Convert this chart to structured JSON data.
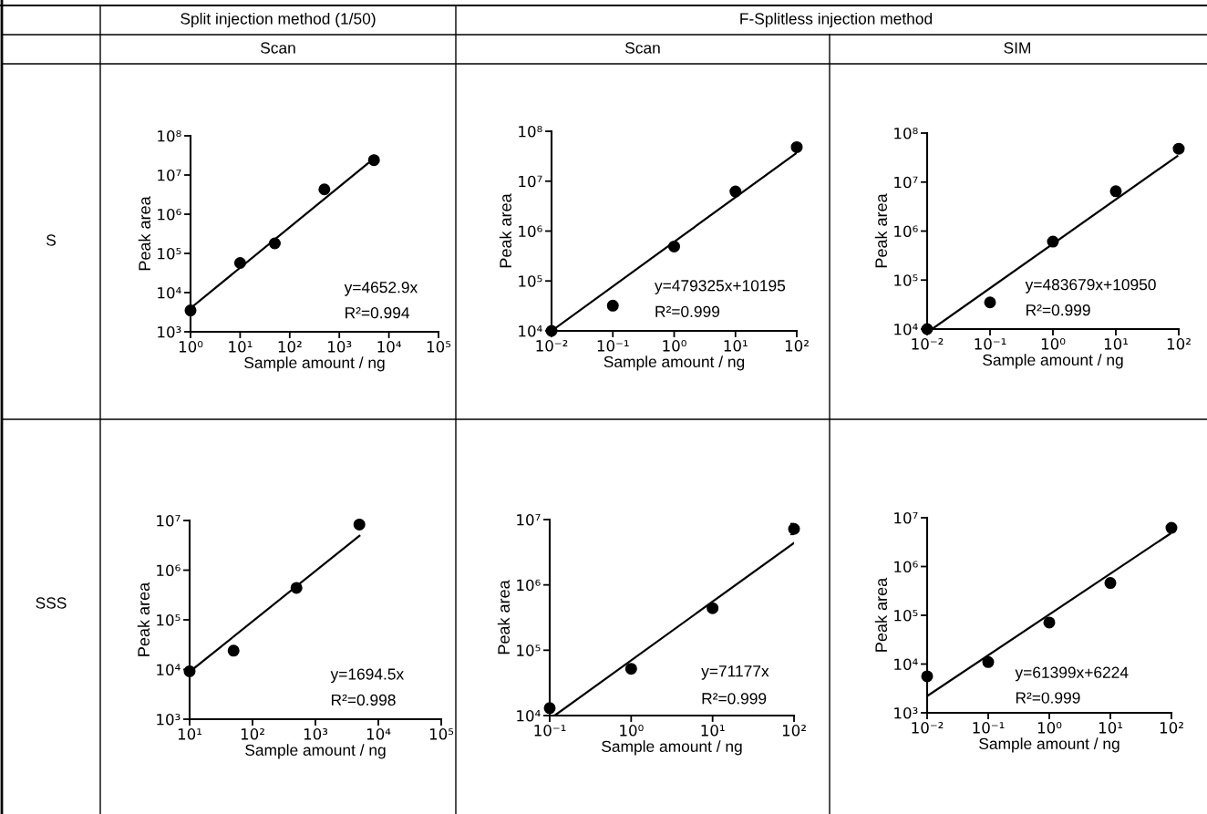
{
  "chart_data": [
    {
      "type": "other",
      "annotations": [
        "Split injection method (1/50)",
        "F-Splitless injection method",
        "Scan",
        "Scan",
        "SIM",
        "S",
        "SSS"
      ]
    },
    {
      "type": "scatter",
      "xlabel": "Sample amount / ng",
      "ylabel": "Peak area",
      "log": "xy",
      "xlim": [
        1,
        100000
      ],
      "ylim": [
        1000,
        100000000
      ],
      "xticks": [
        {
          "value": 1,
          "label": "10⁰"
        },
        {
          "value": 10,
          "label": "10¹"
        },
        {
          "value": 100,
          "label": "10²"
        },
        {
          "value": 1000,
          "label": "10³"
        },
        {
          "value": 10000,
          "label": "10⁴"
        },
        {
          "value": 100000,
          "label": "10⁵"
        }
      ],
      "yticks": [
        {
          "value": 1000,
          "label": "10³"
        },
        {
          "value": 10000,
          "label": "10⁴"
        },
        {
          "value": 100000,
          "label": "10⁵"
        },
        {
          "value": 1000000,
          "label": "10⁶"
        },
        {
          "value": 10000000,
          "label": "10⁷"
        },
        {
          "value": 100000000,
          "label": "10⁸"
        }
      ],
      "series": [
        {
          "type": "scatter",
          "marker": "circle",
          "color": "#000000",
          "x": [
            1,
            10,
            50,
            500,
            5000
          ],
          "values": [
            3500,
            57000,
            180000,
            4300000,
            24000000
          ]
        },
        {
          "type": "line",
          "marker": "none",
          "color": "#000000",
          "x": [
            1,
            3800
          ],
          "values": [
            4000,
            20000000
          ]
        }
      ],
      "annotations": [
        "y=4652.9x",
        "R²=0.994"
      ]
    },
    {
      "type": "scatter",
      "xlabel": "Sample amount / ng",
      "ylabel": "Peak area",
      "log": "xy",
      "xlim": [
        0.01,
        100
      ],
      "ylim": [
        10000,
        100000000
      ],
      "xticks": [
        {
          "value": 0.01,
          "label": "10⁻²"
        },
        {
          "value": 0.1,
          "label": "10⁻¹"
        },
        {
          "value": 1,
          "label": "10⁰"
        },
        {
          "value": 10,
          "label": "10¹"
        },
        {
          "value": 100,
          "label": "10²"
        }
      ],
      "yticks": [
        {
          "value": 10000,
          "label": "10⁴"
        },
        {
          "value": 100000,
          "label": "10⁵"
        },
        {
          "value": 1000000,
          "label": "10⁶"
        },
        {
          "value": 10000000,
          "label": "10⁷"
        },
        {
          "value": 100000000,
          "label": "10⁸"
        }
      ],
      "series": [
        {
          "type": "scatter",
          "marker": "circle",
          "color": "#000000",
          "x": [
            0.01,
            0.1,
            1,
            10,
            100
          ],
          "values": [
            10000,
            32000,
            490000,
            6200000,
            48000000
          ]
        },
        {
          "type": "line",
          "marker": "none",
          "color": "#000000",
          "x": [
            0.01,
            100
          ],
          "values": [
            10000,
            37000000
          ]
        }
      ],
      "annotations": [
        "y=479325x+10195",
        "R²=0.999"
      ]
    },
    {
      "type": "scatter",
      "xlabel": "Sample amount / ng",
      "ylabel": "Peak area",
      "log": "xy",
      "xlim": [
        0.01,
        100
      ],
      "ylim": [
        10000,
        100000000
      ],
      "xticks": [
        {
          "value": 0.01,
          "label": "10⁻²"
        },
        {
          "value": 0.1,
          "label": "10⁻¹"
        },
        {
          "value": 1,
          "label": "10⁰"
        },
        {
          "value": 10,
          "label": "10¹"
        },
        {
          "value": 100,
          "label": "10²"
        }
      ],
      "yticks": [
        {
          "value": 10000,
          "label": "10⁴"
        },
        {
          "value": 100000,
          "label": "10⁵"
        },
        {
          "value": 1000000,
          "label": "10⁶"
        },
        {
          "value": 10000000,
          "label": "10⁷"
        },
        {
          "value": 100000000,
          "label": "10⁸"
        }
      ],
      "series": [
        {
          "type": "scatter",
          "marker": "circle",
          "color": "#000000",
          "x": [
            0.01,
            0.1,
            1,
            10,
            100
          ],
          "values": [
            10000,
            35000,
            610000,
            6500000,
            48000000
          ]
        },
        {
          "type": "line",
          "marker": "none",
          "color": "#000000",
          "x": [
            0.012,
            95
          ],
          "values": [
            10000,
            34000000
          ]
        }
      ],
      "annotations": [
        "y=483679x+10950",
        "R²=0.999"
      ]
    },
    {
      "type": "scatter",
      "xlabel": "Sample amount / ng",
      "ylabel": "Peak area",
      "log": "xy",
      "xlim": [
        10,
        100000
      ],
      "ylim": [
        1000,
        10000000
      ],
      "xticks": [
        {
          "value": 10,
          "label": "10¹"
        },
        {
          "value": 100,
          "label": "10²"
        },
        {
          "value": 1000,
          "label": "10³"
        },
        {
          "value": 10000,
          "label": "10⁴"
        },
        {
          "value": 100000,
          "label": "10⁵"
        }
      ],
      "yticks": [
        {
          "value": 1000,
          "label": "10³"
        },
        {
          "value": 10000,
          "label": "10⁴"
        },
        {
          "value": 100000,
          "label": "10⁵"
        },
        {
          "value": 1000000,
          "label": "10⁶"
        },
        {
          "value": 10000000,
          "label": "10⁷"
        }
      ],
      "series": [
        {
          "type": "scatter",
          "marker": "circle",
          "color": "#000000",
          "x": [
            10,
            50,
            500,
            5000
          ],
          "values": [
            9200,
            24000,
            440000,
            8300000
          ]
        },
        {
          "type": "line",
          "marker": "none",
          "color": "#000000",
          "x": [
            10,
            5000
          ],
          "values": [
            9000,
            4900000
          ]
        }
      ],
      "annotations": [
        "y=1694.5x",
        "R²=0.998"
      ]
    },
    {
      "type": "scatter",
      "xlabel": "Sample amount / ng",
      "ylabel": "Peak area",
      "log": "xy",
      "xlim": [
        0.1,
        100
      ],
      "ylim": [
        10000,
        10000000
      ],
      "xticks": [
        {
          "value": 0.1,
          "label": "10⁻¹"
        },
        {
          "value": 1,
          "label": "10⁰"
        },
        {
          "value": 10,
          "label": "10¹"
        },
        {
          "value": 100,
          "label": "10²"
        }
      ],
      "yticks": [
        {
          "value": 10000,
          "label": "10⁴"
        },
        {
          "value": 100000,
          "label": "10⁵"
        },
        {
          "value": 1000000,
          "label": "10⁶"
        },
        {
          "value": 10000000,
          "label": "10⁷"
        }
      ],
      "series": [
        {
          "type": "scatter",
          "marker": "circle",
          "color": "#000000",
          "x": [
            0.1,
            1,
            10,
            100
          ],
          "values": [
            13000,
            52000,
            440000,
            7200000
          ],
          "errors": [
            null,
            null,
            null,
            [
              5900000,
              8700000
            ]
          ]
        },
        {
          "type": "line",
          "marker": "none",
          "color": "#000000",
          "x": [
            0.115,
            100
          ],
          "values": [
            10000,
            4400000
          ]
        }
      ],
      "annotations": [
        "y=71177x",
        "R²=0.999"
      ]
    },
    {
      "type": "scatter",
      "xlabel": "Sample amount / ng",
      "ylabel": "Peak area",
      "log": "xy",
      "xlim": [
        0.01,
        100
      ],
      "ylim": [
        1000,
        10000000
      ],
      "xticks": [
        {
          "value": 0.01,
          "label": "10⁻²"
        },
        {
          "value": 0.1,
          "label": "10⁻¹"
        },
        {
          "value": 1,
          "label": "10⁰"
        },
        {
          "value": 10,
          "label": "10¹"
        },
        {
          "value": 100,
          "label": "10²"
        }
      ],
      "yticks": [
        {
          "value": 1000,
          "label": "10³"
        },
        {
          "value": 10000,
          "label": "10⁴"
        },
        {
          "value": 100000,
          "label": "10⁵"
        },
        {
          "value": 1000000,
          "label": "10⁶"
        },
        {
          "value": 10000000,
          "label": "10⁷"
        }
      ],
      "series": [
        {
          "type": "scatter",
          "marker": "circle",
          "color": "#000000",
          "x": [
            0.01,
            0.1,
            1,
            10,
            100
          ],
          "values": [
            5600,
            11000,
            71000,
            460000,
            6200000
          ]
        },
        {
          "type": "line",
          "marker": "none",
          "color": "#000000",
          "x": [
            0.01,
            100
          ],
          "values": [
            2200,
            4900000
          ]
        }
      ],
      "annotations": [
        "y=61399x+6224",
        "R²=0.999"
      ]
    }
  ]
}
